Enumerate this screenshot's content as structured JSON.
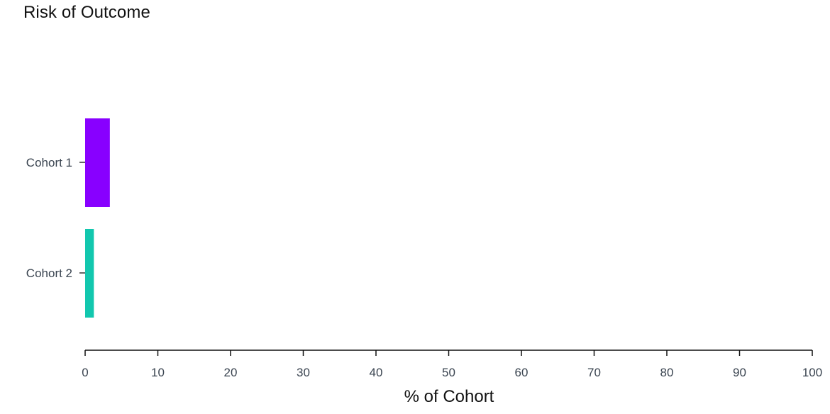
{
  "chart_data": {
    "type": "bar",
    "orientation": "horizontal",
    "title": "Risk of Outcome",
    "xlabel": "% of Cohort",
    "ylabel": "",
    "categories": [
      "Cohort 1",
      "Cohort 2"
    ],
    "values": [
      3.4,
      1.2
    ],
    "colors": [
      "#8800ff",
      "#12c7ae"
    ],
    "xlim": [
      0,
      100
    ],
    "xticks": [
      0,
      10,
      20,
      30,
      40,
      50,
      60,
      70,
      80,
      90,
      100
    ],
    "grid": false,
    "legend": "none"
  }
}
